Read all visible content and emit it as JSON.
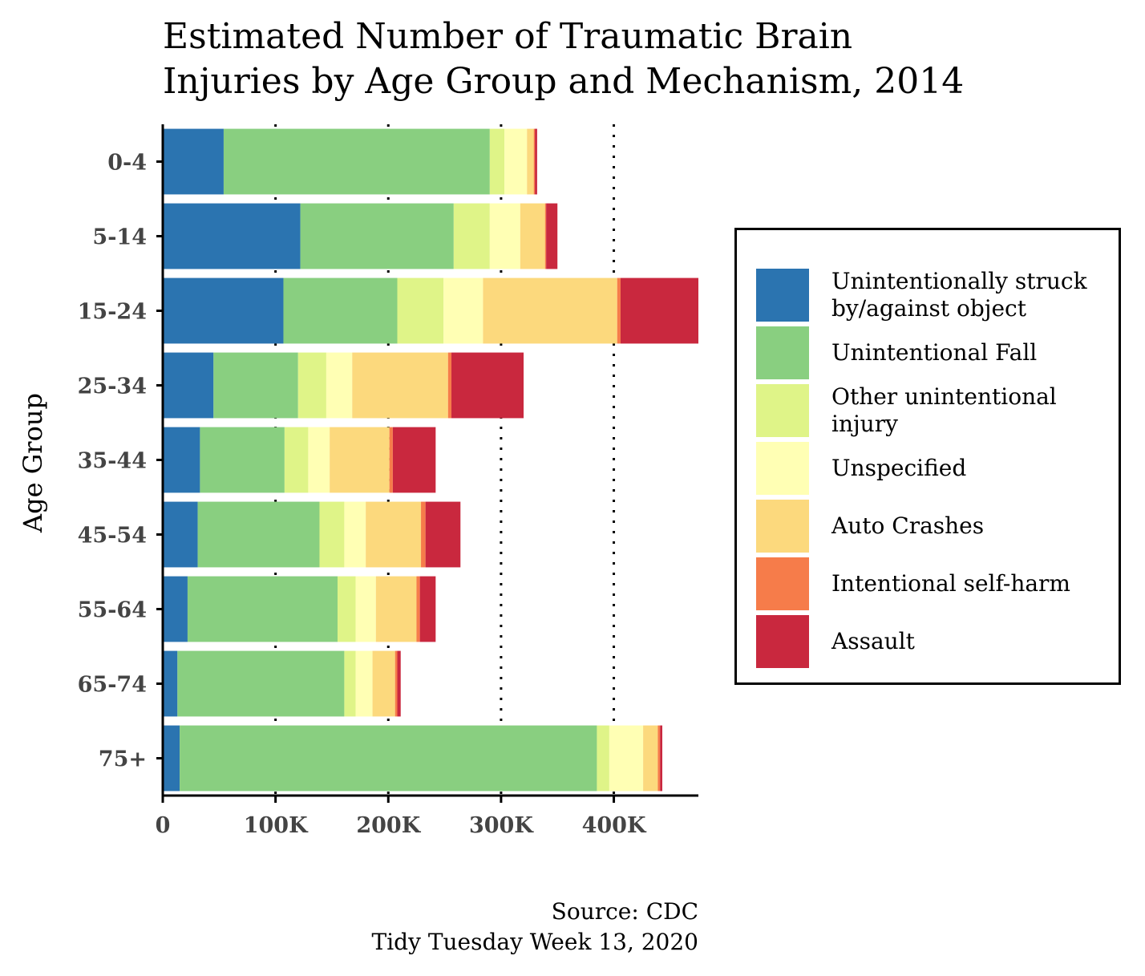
{
  "title_lines": [
    "Estimated Number of Traumatic Brain",
    "Injuries by Age Group and Mechanism, 2014"
  ],
  "caption_lines": [
    "Source: CDC",
    "Tidy Tuesday Week 13, 2020"
  ],
  "chart_data": {
    "type": "bar",
    "orientation": "horizontal",
    "stacked": true,
    "title": "Estimated Number of Traumatic Brain Injuries by Age Group and Mechanism, 2014",
    "ylabel": "Age Group",
    "xlabel": "",
    "xlim": [
      0,
      475000
    ],
    "x_ticks": [
      0,
      100000,
      200000,
      300000,
      400000
    ],
    "x_tick_labels": [
      "0",
      "100K",
      "200K",
      "300K",
      "400K"
    ],
    "grid": "vertical dotted at 100K, 200K, 300K, 400K",
    "legend_position": "right",
    "categories": [
      "0-4",
      "5-14",
      "15-24",
      "25-34",
      "35-44",
      "45-54",
      "55-64",
      "65-74",
      "75+"
    ],
    "series": [
      {
        "name": "Unintentionally struck by/against object",
        "color": "#2b74b0",
        "values": [
          54000,
          122000,
          107000,
          45000,
          33000,
          31000,
          22000,
          13000,
          15000
        ]
      },
      {
        "name": "Unintentional Fall",
        "color": "#89cf80",
        "values": [
          236000,
          136000,
          101000,
          75000,
          75000,
          108000,
          133000,
          148000,
          370000
        ]
      },
      {
        "name": "Other unintentional injury",
        "color": "#dff488",
        "values": [
          13000,
          32000,
          41000,
          25000,
          21000,
          22000,
          16000,
          10000,
          11000
        ]
      },
      {
        "name": "Unspecified",
        "color": "#ffffb4",
        "values": [
          20000,
          27000,
          35000,
          23000,
          19000,
          19000,
          18000,
          15000,
          30000
        ]
      },
      {
        "name": "Auto Crashes",
        "color": "#fcd97d",
        "values": [
          6000,
          22000,
          119000,
          85000,
          53000,
          49000,
          36000,
          20000,
          13000
        ]
      },
      {
        "name": "Intentional self-harm",
        "color": "#f67c4a",
        "values": [
          1000,
          1000,
          3000,
          3000,
          3000,
          4000,
          3000,
          2000,
          2000
        ]
      },
      {
        "name": "Assault",
        "color": "#c9283e",
        "values": [
          2000,
          10000,
          69000,
          64000,
          38000,
          31000,
          14000,
          3000,
          2000
        ]
      }
    ]
  },
  "legend": [
    {
      "lines": [
        "Unintentionally struck",
        "by/against object"
      ],
      "color": "#2b74b0"
    },
    {
      "lines": [
        "Unintentional Fall"
      ],
      "color": "#89cf80"
    },
    {
      "lines": [
        "Other unintentional",
        "injury"
      ],
      "color": "#dff488"
    },
    {
      "lines": [
        "Unspecified"
      ],
      "color": "#ffffb4"
    },
    {
      "lines": [
        "Auto Crashes"
      ],
      "color": "#fcd97d"
    },
    {
      "lines": [
        "Intentional self-harm"
      ],
      "color": "#f67c4a"
    },
    {
      "lines": [
        "Assault"
      ],
      "color": "#c9283e"
    }
  ]
}
